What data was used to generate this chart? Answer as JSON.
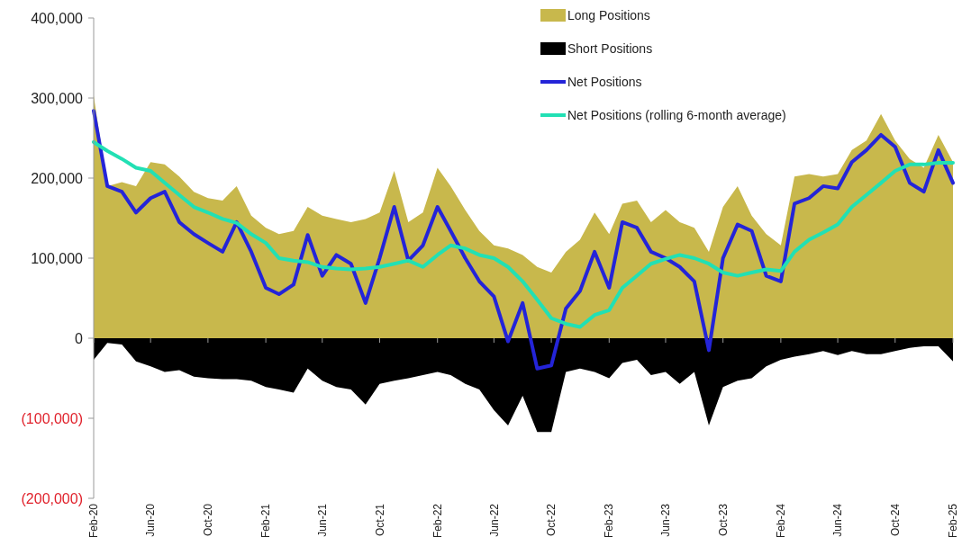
{
  "chart_data": {
    "type": "line",
    "x": [
      "2020-02",
      "2020-03",
      "2020-04",
      "2020-05",
      "2020-06",
      "2020-07",
      "2020-08",
      "2020-09",
      "2020-10",
      "2020-11",
      "2020-12",
      "2021-01",
      "2021-02",
      "2021-03",
      "2021-04",
      "2021-05",
      "2021-06",
      "2021-07",
      "2021-08",
      "2021-09",
      "2021-10",
      "2021-11",
      "2021-12",
      "2022-01",
      "2022-02",
      "2022-03",
      "2022-04",
      "2022-05",
      "2022-06",
      "2022-07",
      "2022-08",
      "2022-09",
      "2022-10",
      "2022-11",
      "2022-12",
      "2023-01",
      "2023-02",
      "2023-03",
      "2023-04",
      "2023-05",
      "2023-06",
      "2023-07",
      "2023-08",
      "2023-09",
      "2023-10",
      "2023-11",
      "2023-12",
      "2024-01",
      "2024-02",
      "2024-03",
      "2024-04",
      "2024-05",
      "2024-06",
      "2024-07",
      "2024-08",
      "2024-09",
      "2024-10",
      "2024-11",
      "2024-12",
      "2025-01",
      "2025-02"
    ],
    "series": [
      {
        "name": "Long Positions",
        "type": "area",
        "color": "#c8b84c",
        "values": [
          303000,
          190000,
          195000,
          190000,
          220000,
          217000,
          202000,
          183000,
          175000,
          172000,
          190000,
          153000,
          138000,
          130000,
          134000,
          164000,
          153000,
          149000,
          145000,
          149000,
          157000,
          209000,
          145000,
          157000,
          213000,
          190000,
          160000,
          134000,
          116000,
          112000,
          104000,
          89000,
          82000,
          108000,
          123000,
          157000,
          130000,
          168000,
          172000,
          145000,
          160000,
          145000,
          138000,
          108000,
          164000,
          190000,
          153000,
          130000,
          116000,
          202000,
          205000,
          202000,
          205000,
          235000,
          247000,
          280000,
          247000,
          224000,
          213000,
          254000,
          220000
        ]
      },
      {
        "name": "Short Positions",
        "type": "area",
        "color": "#000000",
        "values": [
          -27000,
          -6000,
          -8000,
          -29000,
          -35000,
          -42000,
          -40000,
          -48000,
          -50000,
          -51000,
          -51000,
          -53000,
          -61000,
          -64000,
          -68000,
          -38000,
          -53000,
          -61000,
          -64000,
          -83000,
          -57000,
          -53000,
          -50000,
          -46000,
          -42000,
          -46000,
          -57000,
          -64000,
          -90000,
          -109000,
          -72000,
          -117000,
          -117000,
          -42000,
          -38000,
          -42000,
          -50000,
          -31000,
          -27000,
          -46000,
          -42000,
          -57000,
          -42000,
          -109000,
          -61000,
          -53000,
          -50000,
          -35000,
          -27000,
          -23000,
          -20000,
          -16000,
          -21000,
          -16000,
          -20000,
          -20000,
          -16000,
          -12000,
          -10000,
          -10000,
          -29000
        ]
      },
      {
        "name": "Net Positions",
        "color": "#2424d8",
        "values": [
          284000,
          190000,
          183000,
          157000,
          175000,
          183000,
          145000,
          130000,
          119000,
          108000,
          145000,
          108000,
          63000,
          55000,
          67000,
          129000,
          78000,
          104000,
          93000,
          44000,
          100000,
          164000,
          97000,
          116000,
          164000,
          134000,
          100000,
          71000,
          52000,
          -4000,
          44000,
          -38000,
          -34000,
          37000,
          59000,
          108000,
          63000,
          145000,
          138000,
          108000,
          100000,
          89000,
          71000,
          -15000,
          100000,
          142000,
          134000,
          78000,
          71000,
          168000,
          175000,
          190000,
          187000,
          220000,
          235000,
          254000,
          239000,
          194000,
          183000,
          235000,
          194000
        ]
      },
      {
        "name": "Net Positions (rolling 6-month average)",
        "color": "#22e0b4",
        "values": [
          245000,
          234000,
          224000,
          213000,
          209000,
          194000,
          179000,
          164000,
          157000,
          149000,
          144000,
          130000,
          119000,
          100000,
          97000,
          95000,
          89000,
          87000,
          86000,
          87000,
          89000,
          93000,
          97000,
          89000,
          104000,
          116000,
          112000,
          104000,
          100000,
          89000,
          71000,
          48000,
          25000,
          18000,
          14000,
          29000,
          35000,
          63000,
          78000,
          93000,
          99000,
          104000,
          100000,
          93000,
          82000,
          78000,
          82000,
          86000,
          84000,
          108000,
          123000,
          132000,
          142000,
          164000,
          179000,
          194000,
          209000,
          217000,
          217000,
          219000,
          219000
        ]
      }
    ],
    "xlim": [
      "2020-02",
      "2025-02"
    ],
    "xticks": [
      {
        "value": "2020-02",
        "label": "Feb-20"
      },
      {
        "value": "2020-06",
        "label": "Jun-20"
      },
      {
        "value": "2020-10",
        "label": "Oct-20"
      },
      {
        "value": "2021-02",
        "label": "Feb-21"
      },
      {
        "value": "2021-06",
        "label": "Jun-21"
      },
      {
        "value": "2021-10",
        "label": "Oct-21"
      },
      {
        "value": "2022-02",
        "label": "Feb-22"
      },
      {
        "value": "2022-06",
        "label": "Jun-22"
      },
      {
        "value": "2022-10",
        "label": "Oct-22"
      },
      {
        "value": "2023-02",
        "label": "Feb-23"
      },
      {
        "value": "2023-06",
        "label": "Jun-23"
      },
      {
        "value": "2023-10",
        "label": "Oct-23"
      },
      {
        "value": "2024-02",
        "label": "Feb-24"
      },
      {
        "value": "2024-06",
        "label": "Jun-24"
      },
      {
        "value": "2024-10",
        "label": "Oct-24"
      },
      {
        "value": "2025-02",
        "label": "Feb-25"
      }
    ],
    "ylim": [
      -200000,
      400000
    ],
    "yticks": [
      {
        "value": -200000,
        "label": "(200,000)"
      },
      {
        "value": -100000,
        "label": "(100,000)"
      },
      {
        "value": 0,
        "label": "0"
      },
      {
        "value": 100000,
        "label": "100,000"
      },
      {
        "value": 200000,
        "label": "200,000"
      },
      {
        "value": 300000,
        "label": "300,000"
      },
      {
        "value": 400000,
        "label": "400,000"
      }
    ],
    "legend": "top right"
  }
}
